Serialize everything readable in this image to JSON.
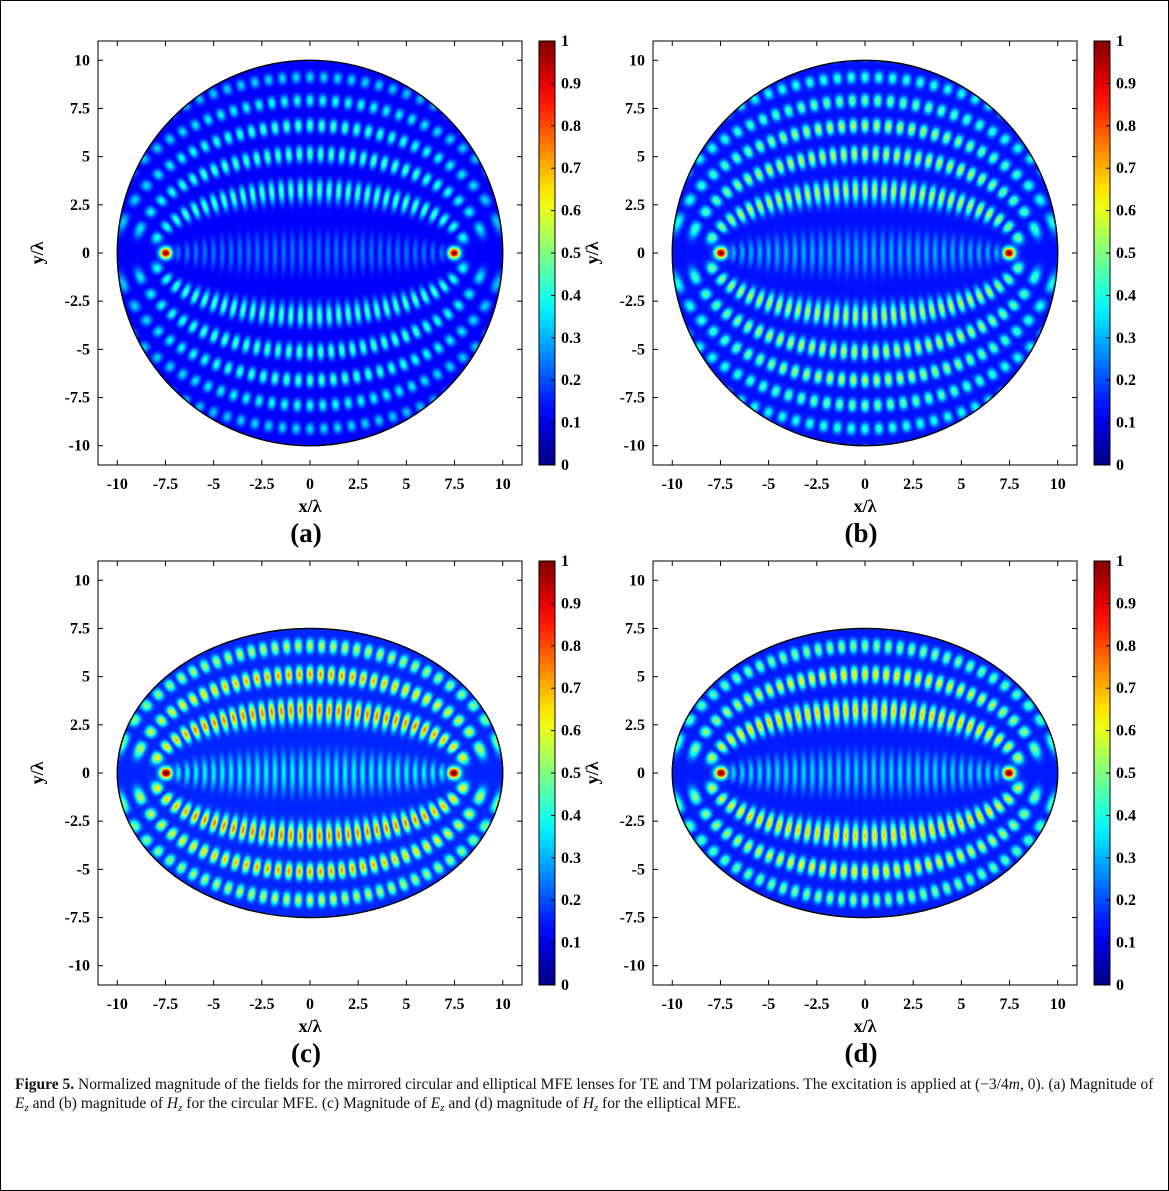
{
  "figure": {
    "caption_label": "Figure 5.",
    "caption_parts": [
      "Normalized magnitude of the fields for the mirrored circular and elliptical MFE lenses for TE and TM polarizations. The excitation is applied at (−3/4",
      "m",
      ", 0). (a) Magnitude of ",
      "E",
      "z",
      " and (b) magnitude of ",
      "H",
      "z",
      " for the circular MFE. (c) Magnitude of ",
      "E",
      "z",
      " and (d) magnitude of ",
      "H",
      "z",
      " for the elliptical MFE."
    ]
  },
  "colors": {
    "colormap": "jet",
    "boundary": "#000000",
    "axes": "#000000"
  },
  "chart_data": [
    {
      "type": "heatmap",
      "panel_label": "(a)",
      "field": "Ez",
      "lens": "circular",
      "xlabel": "x/λ",
      "ylabel": "y/λ",
      "xlim": [
        -11,
        11
      ],
      "ylim": [
        -11,
        11
      ],
      "xticks": [
        "-10",
        "-7.5",
        "-5",
        "-2.5",
        "0",
        "2.5",
        "5",
        "7.5",
        "10"
      ],
      "yticks": [
        "10",
        "7.5",
        "5",
        "2.5",
        "0",
        "-2.5",
        "-5",
        "-7.5",
        "-10"
      ],
      "colorbar_ticks": [
        "1",
        "0.9",
        "0.8",
        "0.7",
        "0.6",
        "0.5",
        "0.4",
        "0.3",
        "0.2",
        "0.1",
        "0"
      ],
      "clim": [
        0,
        1
      ],
      "boundary": {
        "shape": "circle",
        "center": [
          0,
          0
        ],
        "rx": 10,
        "ry": 10
      },
      "foci": [
        [
          -7.5,
          0
        ],
        [
          7.5,
          0
        ]
      ],
      "peak_level": 0.35,
      "background_level": 0.12
    },
    {
      "type": "heatmap",
      "panel_label": "(b)",
      "field": "Hz",
      "lens": "circular",
      "xlabel": "x/λ",
      "ylabel": "y/λ",
      "xlim": [
        -11,
        11
      ],
      "ylim": [
        -11,
        11
      ],
      "xticks": [
        "-10",
        "-7.5",
        "-5",
        "-2.5",
        "0",
        "2.5",
        "5",
        "7.5",
        "10"
      ],
      "yticks": [
        "10",
        "7.5",
        "5",
        "2.5",
        "0",
        "-2.5",
        "-5",
        "-7.5",
        "-10"
      ],
      "colorbar_ticks": [
        "1",
        "0.9",
        "0.8",
        "0.7",
        "0.6",
        "0.5",
        "0.4",
        "0.3",
        "0.2",
        "0.1",
        "0"
      ],
      "clim": [
        0,
        1
      ],
      "boundary": {
        "shape": "circle",
        "center": [
          0,
          0
        ],
        "rx": 10,
        "ry": 10
      },
      "foci": [
        [
          -7.5,
          0
        ],
        [
          7.5,
          0
        ]
      ],
      "peak_level": 0.45,
      "background_level": 0.14
    },
    {
      "type": "heatmap",
      "panel_label": "(c)",
      "field": "Ez",
      "lens": "elliptical",
      "xlabel": "x/λ",
      "ylabel": "y/λ",
      "xlim": [
        -11,
        11
      ],
      "ylim": [
        -11,
        11
      ],
      "xticks": [
        "-10",
        "-7.5",
        "-5",
        "-2.5",
        "0",
        "2.5",
        "5",
        "7.5",
        "10"
      ],
      "yticks": [
        "10",
        "7.5",
        "5",
        "2.5",
        "0",
        "-2.5",
        "-5",
        "-7.5",
        "-10"
      ],
      "colorbar_ticks": [
        "1",
        "0.9",
        "0.8",
        "0.7",
        "0.6",
        "0.5",
        "0.4",
        "0.3",
        "0.2",
        "0.1",
        "0"
      ],
      "clim": [
        0,
        1
      ],
      "boundary": {
        "shape": "ellipse",
        "center": [
          0,
          0
        ],
        "rx": 10,
        "ry": 7.5
      },
      "foci": [
        [
          -7.5,
          0
        ],
        [
          7.5,
          0
        ]
      ],
      "peak_level": 0.62,
      "background_level": 0.16
    },
    {
      "type": "heatmap",
      "panel_label": "(d)",
      "field": "Hz",
      "lens": "elliptical",
      "xlabel": "x/λ",
      "ylabel": "y/λ",
      "xlim": [
        -11,
        11
      ],
      "ylim": [
        -11,
        11
      ],
      "xticks": [
        "-10",
        "-7.5",
        "-5",
        "-2.5",
        "0",
        "2.5",
        "5",
        "7.5",
        "10"
      ],
      "yticks": [
        "10",
        "7.5",
        "5",
        "2.5",
        "0",
        "-2.5",
        "-5",
        "-7.5",
        "-10"
      ],
      "colorbar_ticks": [
        "1",
        "0.9",
        "0.8",
        "0.7",
        "0.6",
        "0.5",
        "0.4",
        "0.3",
        "0.2",
        "0.1",
        "0"
      ],
      "clim": [
        0,
        1
      ],
      "boundary": {
        "shape": "ellipse",
        "center": [
          0,
          0
        ],
        "rx": 10,
        "ry": 7.5
      },
      "foci": [
        [
          -7.5,
          0
        ],
        [
          7.5,
          0
        ]
      ],
      "peak_level": 0.55,
      "background_level": 0.15
    }
  ]
}
